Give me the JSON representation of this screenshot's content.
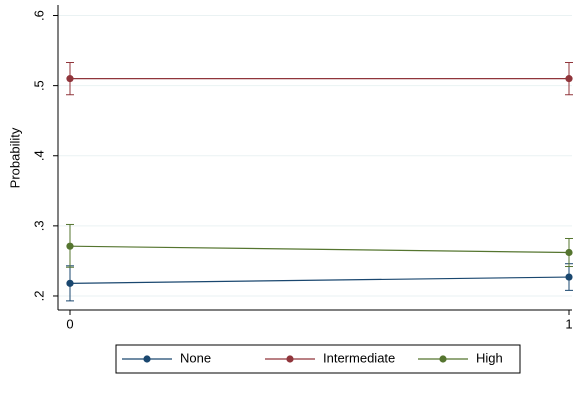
{
  "chart_data": {
    "type": "line",
    "ylabel": "Probability",
    "x": [
      0,
      1
    ],
    "xlim": [
      -0.012,
      1.0
    ],
    "xticks": [
      0,
      1
    ],
    "ylim": [
      0.18,
      0.615
    ],
    "yticks": [
      {
        "value": 0.2,
        "label": ".2"
      },
      {
        "value": 0.3,
        "label": ".3"
      },
      {
        "value": 0.4,
        "label": ".4"
      },
      {
        "value": 0.5,
        "label": ".5"
      },
      {
        "value": 0.6,
        "label": ".6"
      }
    ],
    "grid": true,
    "legend": "bottom",
    "series": [
      {
        "name": "None",
        "color": "#1a476f",
        "values": [
          0.218,
          0.227
        ],
        "ci_low": [
          0.193,
          0.208
        ],
        "ci_high": [
          0.243,
          0.246
        ]
      },
      {
        "name": "Intermediate",
        "color": "#90353b",
        "values": [
          0.51,
          0.51
        ],
        "ci_low": [
          0.487,
          0.487
        ],
        "ci_high": [
          0.533,
          0.533
        ]
      },
      {
        "name": "High",
        "color": "#55752f",
        "values": [
          0.271,
          0.262
        ],
        "ci_low": [
          0.241,
          0.242
        ],
        "ci_high": [
          0.302,
          0.282
        ]
      }
    ]
  }
}
